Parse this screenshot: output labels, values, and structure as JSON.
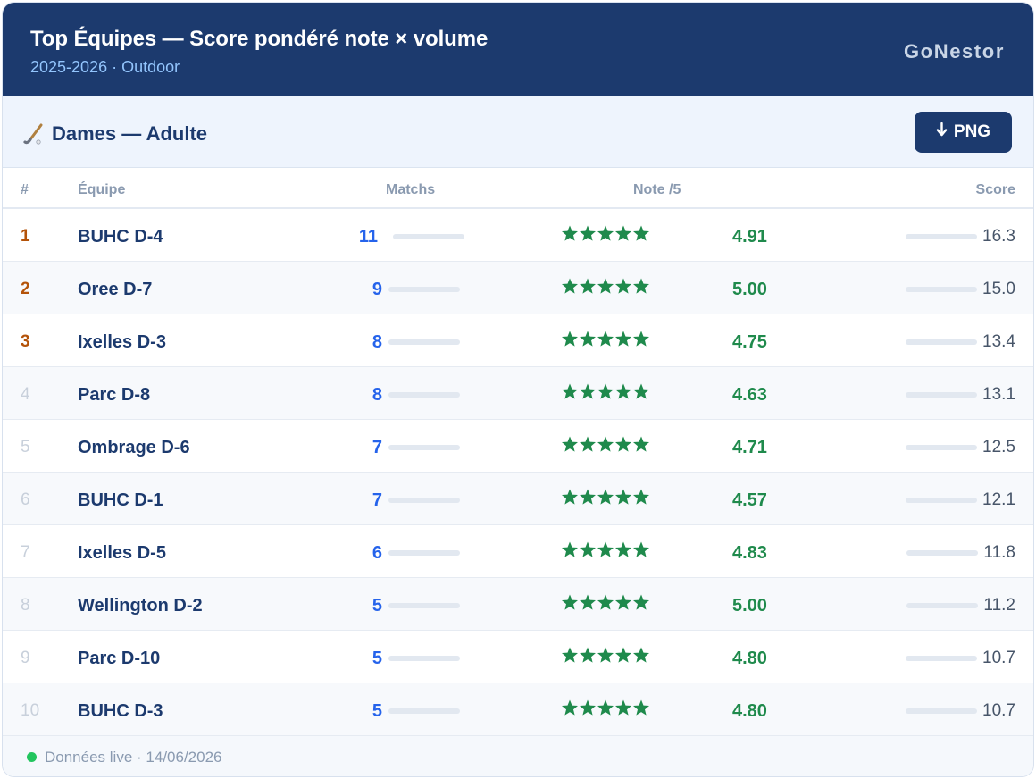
{
  "header": {
    "title": "Top Équipes — Score pondéré note × volume",
    "season": "2025-2026",
    "separator": "·",
    "venue": "Outdoor",
    "brand": "GoNestor"
  },
  "section": {
    "icon": "hockey-stick-icon",
    "title": "Dames — Adulte",
    "export_icon": "download-arrow-icon",
    "export_label": "PNG"
  },
  "table": {
    "columns": {
      "rank": "#",
      "team": "Équipe",
      "matches": "Matchs",
      "note": "Note /5",
      "score": "Score"
    },
    "rows": [
      {
        "rank": "1",
        "team": "BUHC D-4",
        "matches": "11",
        "note": "4.91",
        "score": "16.3",
        "stars": 5
      },
      {
        "rank": "2",
        "team": "Oree D-7",
        "matches": "9",
        "note": "5.00",
        "score": "15.0",
        "stars": 5
      },
      {
        "rank": "3",
        "team": "Ixelles D-3",
        "matches": "8",
        "note": "4.75",
        "score": "13.4",
        "stars": 5
      },
      {
        "rank": "4",
        "team": "Parc D-8",
        "matches": "8",
        "note": "4.63",
        "score": "13.1",
        "stars": 5
      },
      {
        "rank": "5",
        "team": "Ombrage D-6",
        "matches": "7",
        "note": "4.71",
        "score": "12.5",
        "stars": 5
      },
      {
        "rank": "6",
        "team": "BUHC D-1",
        "matches": "7",
        "note": "4.57",
        "score": "12.1",
        "stars": 5
      },
      {
        "rank": "7",
        "team": "Ixelles D-5",
        "matches": "6",
        "note": "4.83",
        "score": "11.8",
        "stars": 5
      },
      {
        "rank": "8",
        "team": "Wellington D-2",
        "matches": "5",
        "note": "5.00",
        "score": "11.2",
        "stars": 5
      },
      {
        "rank": "9",
        "team": "Parc D-10",
        "matches": "5",
        "note": "4.80",
        "score": "10.7",
        "stars": 5
      },
      {
        "rank": "10",
        "team": "BUHC D-3",
        "matches": "5",
        "note": "4.80",
        "score": "10.7",
        "stars": 5
      }
    ]
  },
  "footer": {
    "status": "Données live",
    "separator": "·",
    "date": "14/06/2026"
  },
  "colors": {
    "header_bg": "#1c3a6e",
    "subtitle": "#93c5fd",
    "podium_rank": "#b45309",
    "matches": "#2563eb",
    "note": "#1f8a4c",
    "star": "#1f8a4c",
    "live": "#22c55e"
  }
}
